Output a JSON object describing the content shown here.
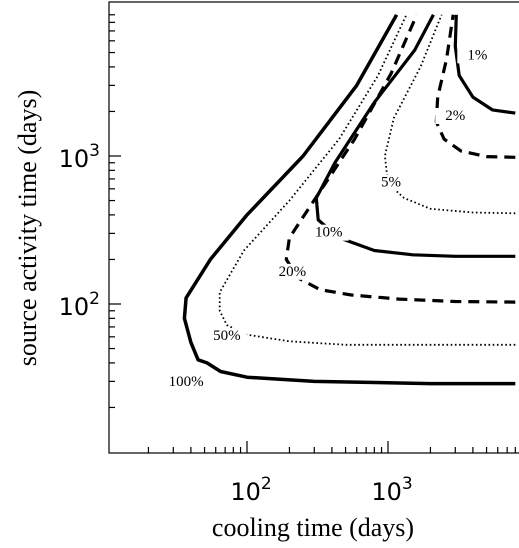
{
  "chart_data": {
    "type": "line",
    "xlabel": "cooling time (days)",
    "ylabel": "source activity time (days)",
    "xscale": "log",
    "yscale": "log",
    "xlim": [
      10,
      8000
    ],
    "ylim": [
      4,
      9000
    ],
    "grid": false,
    "x_ticks": [
      {
        "value": 100,
        "base": "10",
        "exp": "2"
      },
      {
        "value": 1000,
        "base": "10",
        "exp": "3"
      }
    ],
    "y_ticks": [
      {
        "value": 100,
        "base": "10",
        "exp": "2"
      },
      {
        "value": 1000,
        "base": "10",
        "exp": "3"
      }
    ],
    "series": [
      {
        "name": "100%",
        "style": "solid",
        "width": 3.5,
        "label_at": [
          37,
          28
        ],
        "points": [
          [
            8000,
            29
          ],
          [
            2000,
            29
          ],
          [
            300,
            30
          ],
          [
            100,
            32
          ],
          [
            65,
            35
          ],
          [
            52,
            40
          ],
          [
            45,
            42
          ],
          [
            40,
            55
          ],
          [
            36,
            80
          ],
          [
            37,
            110
          ],
          [
            55,
            200
          ],
          [
            100,
            400
          ],
          [
            250,
            1000
          ],
          [
            600,
            3000
          ],
          [
            1150,
            9000
          ]
        ]
      },
      {
        "name": "50%",
        "style": "dotted",
        "width": 1.8,
        "label_at": [
          72,
          57
        ],
        "points": [
          [
            8000,
            53
          ],
          [
            2000,
            53
          ],
          [
            500,
            53
          ],
          [
            200,
            56
          ],
          [
            100,
            62
          ],
          [
            72,
            72
          ],
          [
            64,
            90
          ],
          [
            64,
            120
          ],
          [
            95,
            230
          ],
          [
            200,
            500
          ],
          [
            450,
            1300
          ],
          [
            850,
            3500
          ],
          [
            1350,
            9000
          ]
        ]
      },
      {
        "name": "20%",
        "style": "dashed",
        "width": 3.2,
        "label_at": [
          210,
          155
        ],
        "points": [
          [
            8000,
            103
          ],
          [
            3000,
            104
          ],
          [
            1200,
            108
          ],
          [
            550,
            115
          ],
          [
            330,
            125
          ],
          [
            230,
            150
          ],
          [
            190,
            200
          ],
          [
            200,
            280
          ],
          [
            290,
            480
          ],
          [
            580,
            1300
          ],
          [
            1050,
            3600
          ],
          [
            1600,
            9000
          ]
        ]
      },
      {
        "name": "10%",
        "style": "solid",
        "width": 3.2,
        "label_at": [
          380,
          285
        ],
        "points": [
          [
            8000,
            210
          ],
          [
            3000,
            210
          ],
          [
            1500,
            215
          ],
          [
            800,
            230
          ],
          [
            450,
            280
          ],
          [
            320,
            370
          ],
          [
            310,
            520
          ],
          [
            420,
            900
          ],
          [
            800,
            2300
          ],
          [
            1550,
            5200
          ],
          [
            2100,
            9000
          ]
        ]
      },
      {
        "name": "5%",
        "style": "dotted",
        "width": 1.8,
        "label_at": [
          1050,
          620
        ],
        "points": [
          [
            8000,
            410
          ],
          [
            4000,
            415
          ],
          [
            2000,
            440
          ],
          [
            1300,
            520
          ],
          [
            1000,
            650
          ],
          [
            950,
            1000
          ],
          [
            1100,
            1800
          ],
          [
            1700,
            4000
          ],
          [
            2400,
            9000
          ]
        ]
      },
      {
        "name": "2%",
        "style": "dashed",
        "width": 3.2,
        "label_at": [
          3000,
          1750
        ],
        "points": [
          [
            8000,
            980
          ],
          [
            5000,
            990
          ],
          [
            3300,
            1080
          ],
          [
            2500,
            1300
          ],
          [
            2200,
            1700
          ],
          [
            2250,
            2500
          ],
          [
            2600,
            4500
          ],
          [
            2900,
            9000
          ]
        ]
      },
      {
        "name": "1%",
        "style": "solid",
        "width": 3.2,
        "label_at": [
          4300,
          4500
        ],
        "points": [
          [
            8000,
            1950
          ],
          [
            5500,
            2050
          ],
          [
            4000,
            2500
          ],
          [
            3200,
            3500
          ],
          [
            3000,
            5500
          ],
          [
            3050,
            9000
          ]
        ]
      }
    ]
  }
}
